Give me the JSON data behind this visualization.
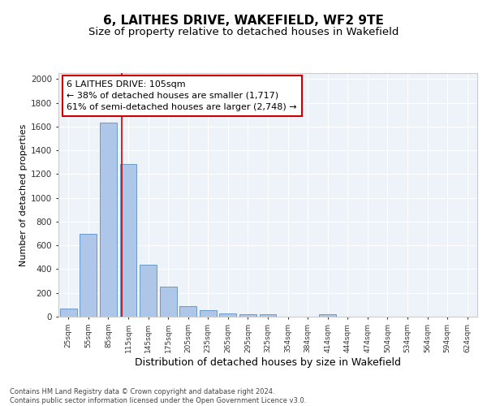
{
  "title": "6, LAITHES DRIVE, WAKEFIELD, WF2 9TE",
  "subtitle": "Size of property relative to detached houses in Wakefield",
  "xlabel": "Distribution of detached houses by size in Wakefield",
  "ylabel": "Number of detached properties",
  "categories": [
    "25sqm",
    "55sqm",
    "85sqm",
    "115sqm",
    "145sqm",
    "175sqm",
    "205sqm",
    "235sqm",
    "265sqm",
    "295sqm",
    "325sqm",
    "354sqm",
    "384sqm",
    "414sqm",
    "444sqm",
    "474sqm",
    "504sqm",
    "534sqm",
    "564sqm",
    "594sqm",
    "624sqm"
  ],
  "values": [
    65,
    695,
    1635,
    1285,
    435,
    255,
    90,
    55,
    30,
    20,
    20,
    0,
    0,
    20,
    0,
    0,
    0,
    0,
    0,
    0,
    0
  ],
  "bar_color": "#aec6e8",
  "bar_edge_color": "#5a8fc2",
  "background_color": "#eef2f9",
  "grid_color": "#ffffff",
  "property_line_x": 2.67,
  "annotation_text": "6 LAITHES DRIVE: 105sqm\n← 38% of detached houses are smaller (1,717)\n61% of semi-detached houses are larger (2,748) →",
  "annotation_box_color": "#ffffff",
  "annotation_box_edge_color": "#cc0000",
  "ylim": [
    0,
    2050
  ],
  "yticks": [
    0,
    200,
    400,
    600,
    800,
    1000,
    1200,
    1400,
    1600,
    1800,
    2000
  ],
  "footer_text": "Contains HM Land Registry data © Crown copyright and database right 2024.\nContains public sector information licensed under the Open Government Licence v3.0.",
  "title_fontsize": 11,
  "subtitle_fontsize": 9.5,
  "xlabel_fontsize": 9,
  "ylabel_fontsize": 8,
  "annotation_fontsize": 8
}
